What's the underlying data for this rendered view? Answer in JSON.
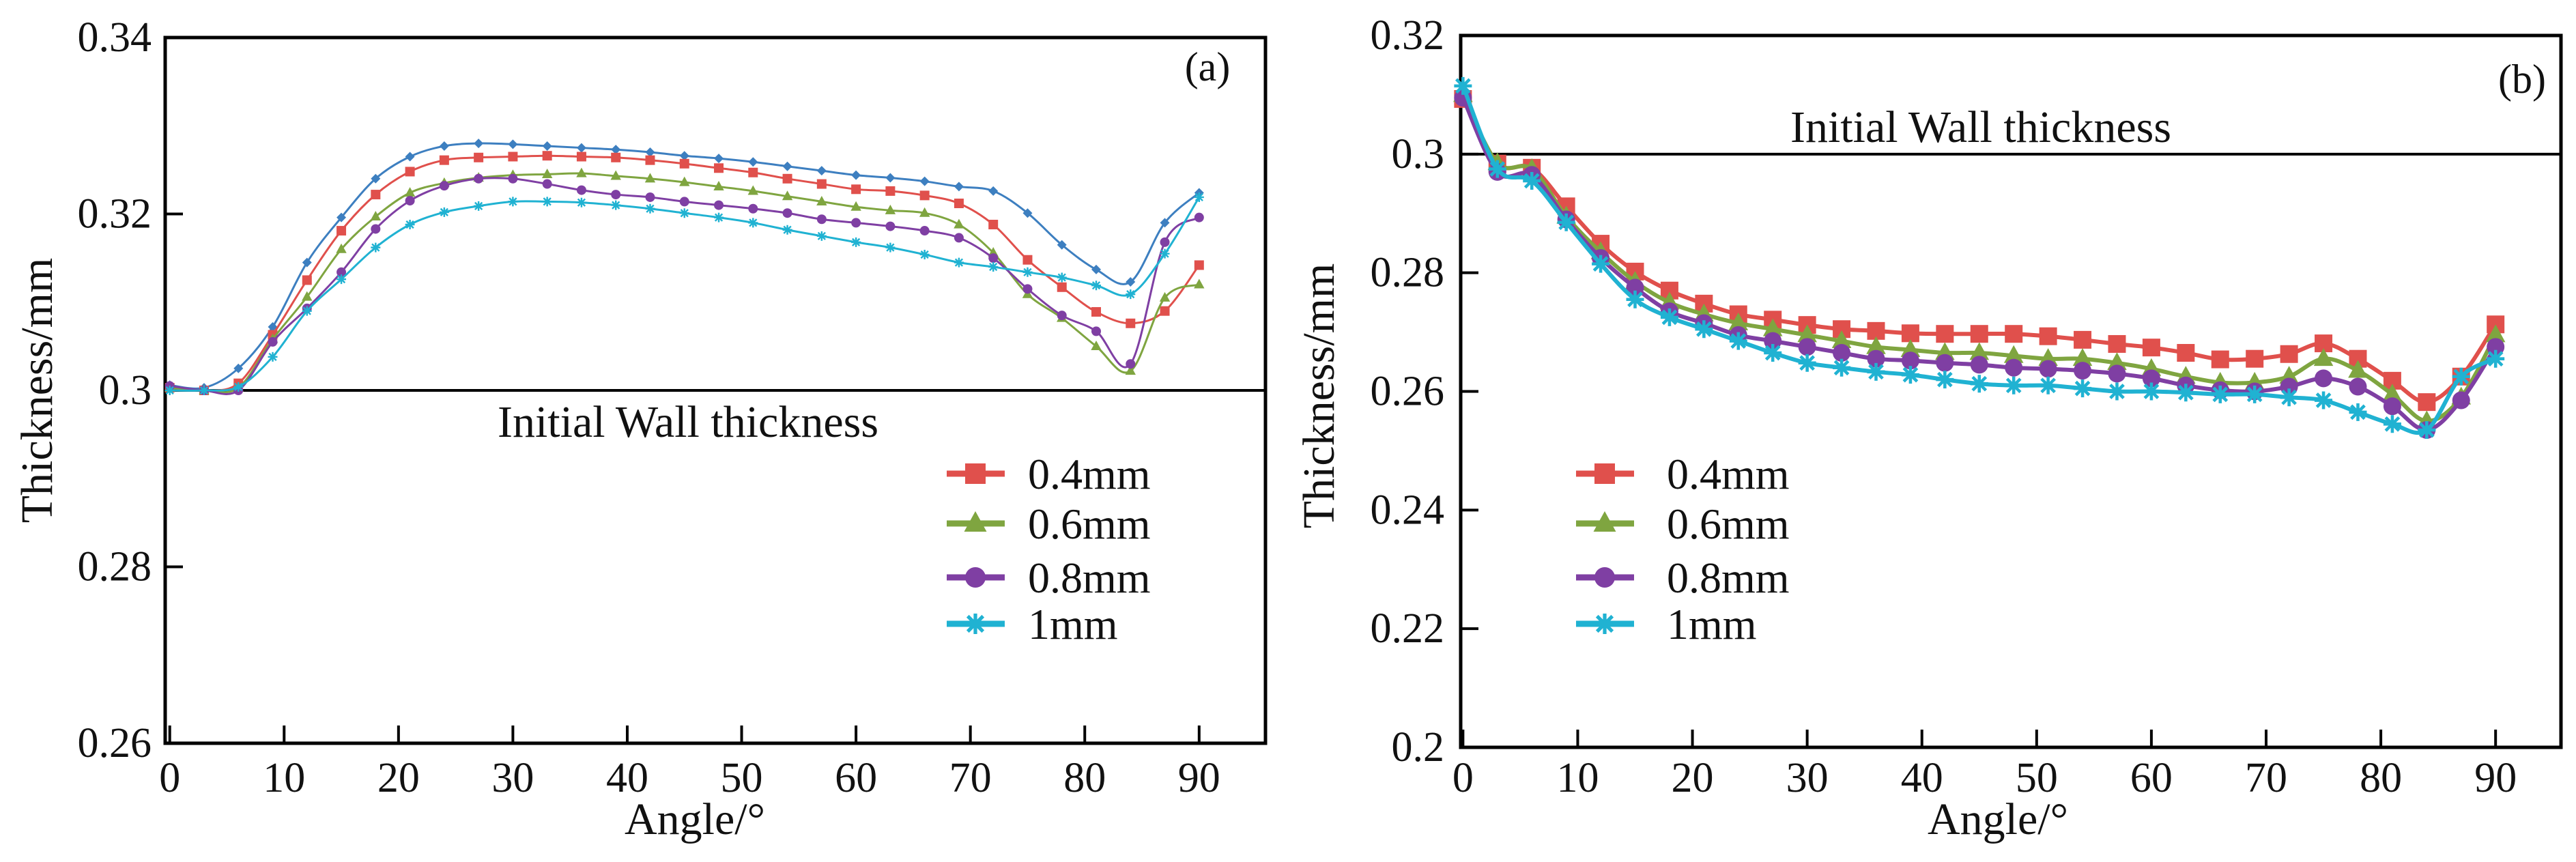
{
  "chart_data": [
    {
      "type": "line",
      "panel_label": "(a)",
      "xlabel": "Angle/°",
      "ylabel": "Thickness/mm",
      "xlim": [
        -0.4,
        95.8
      ],
      "ylim": [
        0.26,
        0.34
      ],
      "xticks": [
        0,
        10,
        20,
        30,
        40,
        50,
        60,
        70,
        80,
        90
      ],
      "xtick_labels": [
        "0",
        "10",
        "20",
        "30",
        "40",
        "50",
        "60",
        "70",
        "80",
        "90"
      ],
      "yticks": [
        0.26,
        0.28,
        0.3,
        0.32,
        0.34
      ],
      "ytick_labels": [
        "0.26",
        "0.28",
        "0.3",
        "0.32",
        "0.34"
      ],
      "grid": false,
      "legend_position": "center-right",
      "reference_line": {
        "y": 0.3,
        "label": "Initial Wall thickness"
      },
      "x": [
        0,
        3,
        6,
        9,
        12,
        15,
        18,
        21,
        24,
        27,
        30,
        33,
        36,
        39,
        42,
        45,
        48,
        51,
        54,
        57,
        60,
        63,
        66,
        69,
        72,
        75,
        78,
        81,
        84,
        87,
        90
      ],
      "series": [
        {
          "name": "",
          "color": "#3d7fc0",
          "marker": "diamond",
          "values": [
            0.3006,
            0.3003,
            0.3025,
            0.3072,
            0.3145,
            0.3196,
            0.324,
            0.3265,
            0.3277,
            0.328,
            0.3279,
            0.3277,
            0.3275,
            0.3273,
            0.327,
            0.3266,
            0.3263,
            0.3259,
            0.3254,
            0.3249,
            0.3244,
            0.3241,
            0.3237,
            0.3231,
            0.3226,
            0.3201,
            0.3165,
            0.3137,
            0.3123,
            0.319,
            0.3224
          ]
        },
        {
          "name": "0.4mm",
          "color": "#e0504c",
          "marker": "square",
          "values": [
            0.3003,
            0.3,
            0.3008,
            0.3063,
            0.3125,
            0.3181,
            0.3222,
            0.3248,
            0.3261,
            0.3264,
            0.3265,
            0.3266,
            0.3265,
            0.3264,
            0.3261,
            0.3257,
            0.3252,
            0.3247,
            0.324,
            0.3234,
            0.3228,
            0.3226,
            0.3221,
            0.3212,
            0.3188,
            0.3148,
            0.3117,
            0.3089,
            0.3076,
            0.309,
            0.3142
          ]
        },
        {
          "name": "0.6mm",
          "color": "#7fa540",
          "marker": "triangle",
          "values": [
            0.3003,
            0.3,
            0.3003,
            0.3058,
            0.3106,
            0.316,
            0.3197,
            0.3224,
            0.3235,
            0.3241,
            0.3244,
            0.3245,
            0.3246,
            0.3243,
            0.324,
            0.3236,
            0.3231,
            0.3226,
            0.322,
            0.3214,
            0.3208,
            0.3204,
            0.3201,
            0.3188,
            0.3156,
            0.3109,
            0.3082,
            0.305,
            0.3022,
            0.3105,
            0.312
          ]
        },
        {
          "name": "0.8mm",
          "color": "#7f3fa3",
          "marker": "circle",
          "values": [
            0.3005,
            0.3,
            0.3,
            0.3055,
            0.3093,
            0.3134,
            0.3183,
            0.3215,
            0.3232,
            0.324,
            0.324,
            0.3234,
            0.3227,
            0.3222,
            0.3219,
            0.3214,
            0.321,
            0.3206,
            0.3201,
            0.3194,
            0.319,
            0.3186,
            0.3181,
            0.3173,
            0.315,
            0.3115,
            0.3085,
            0.3067,
            0.303,
            0.3168,
            0.3196
          ]
        },
        {
          "name": "1mm",
          "color": "#20b2d2",
          "marker": "asterisk",
          "values": [
            0.3,
            0.3,
            0.3004,
            0.3038,
            0.309,
            0.3126,
            0.3162,
            0.3188,
            0.3202,
            0.3209,
            0.3214,
            0.3214,
            0.3213,
            0.321,
            0.3206,
            0.3201,
            0.3196,
            0.319,
            0.3182,
            0.3175,
            0.3168,
            0.3162,
            0.3154,
            0.3145,
            0.314,
            0.3134,
            0.3128,
            0.3119,
            0.3109,
            0.3155,
            0.3219
          ]
        }
      ]
    },
    {
      "type": "line",
      "panel_label": "(b)",
      "xlabel": "Angle/°",
      "ylabel": "Thickness/mm",
      "xlim": [
        -0.2,
        95.7
      ],
      "ylim": [
        0.2,
        0.32
      ],
      "xticks": [
        0,
        10,
        20,
        30,
        40,
        50,
        60,
        70,
        80,
        90
      ],
      "xtick_labels": [
        "0",
        "10",
        "20",
        "30",
        "40",
        "50",
        "60",
        "70",
        "80",
        "90"
      ],
      "yticks": [
        0.2,
        0.22,
        0.24,
        0.26,
        0.28,
        0.3,
        0.32
      ],
      "ytick_labels": [
        "0.2",
        "0.22",
        "0.24",
        "0.26",
        "0.28",
        "0.3",
        "0.32"
      ],
      "grid": false,
      "legend_position": "center-left",
      "reference_line": {
        "y": 0.3,
        "label": "Initial Wall thickness"
      },
      "x": [
        0,
        3,
        6,
        9,
        12,
        15,
        18,
        21,
        24,
        27,
        30,
        33,
        36,
        39,
        42,
        45,
        48,
        51,
        54,
        57,
        60,
        63,
        66,
        69,
        72,
        75,
        78,
        81,
        84,
        87,
        90
      ],
      "series": [
        {
          "name": "0.4mm",
          "color": "#e0504c",
          "marker": "square",
          "values": [
            0.3093,
            0.2984,
            0.2977,
            0.2912,
            0.2849,
            0.2802,
            0.277,
            0.2748,
            0.273,
            0.2721,
            0.2712,
            0.2705,
            0.2702,
            0.2698,
            0.2697,
            0.2697,
            0.2697,
            0.2693,
            0.2687,
            0.268,
            0.2674,
            0.2665,
            0.2654,
            0.2655,
            0.2663,
            0.2681,
            0.2655,
            0.2618,
            0.2582,
            0.2625,
            0.2713
          ]
        },
        {
          "name": "0.6mm",
          "color": "#7fa540",
          "marker": "triangle",
          "values": [
            0.31,
            0.2985,
            0.2975,
            0.2895,
            0.2835,
            0.2785,
            0.275,
            0.273,
            0.2715,
            0.2705,
            0.2695,
            0.2685,
            0.2675,
            0.267,
            0.2665,
            0.2665,
            0.266,
            0.2655,
            0.2655,
            0.2648,
            0.2638,
            0.2625,
            0.2615,
            0.2615,
            0.2625,
            0.2655,
            0.2635,
            0.2595,
            0.255,
            0.259,
            0.2695
          ]
        },
        {
          "name": "0.8mm",
          "color": "#7f3fa3",
          "marker": "circle",
          "values": [
            0.3095,
            0.297,
            0.2965,
            0.289,
            0.2825,
            0.2775,
            0.2735,
            0.2715,
            0.2695,
            0.2685,
            0.2675,
            0.2665,
            0.2655,
            0.2652,
            0.2648,
            0.2645,
            0.264,
            0.2638,
            0.2635,
            0.263,
            0.2622,
            0.261,
            0.2602,
            0.26,
            0.2608,
            0.2622,
            0.2608,
            0.2575,
            0.2535,
            0.2585,
            0.2675
          ]
        },
        {
          "name": "1mm",
          "color": "#20b2d2",
          "marker": "asterisk",
          "values": [
            0.3115,
            0.2975,
            0.2955,
            0.2885,
            0.2815,
            0.2755,
            0.2725,
            0.2705,
            0.2685,
            0.2665,
            0.2648,
            0.264,
            0.2633,
            0.2628,
            0.262,
            0.2613,
            0.261,
            0.261,
            0.2605,
            0.26,
            0.26,
            0.2598,
            0.2595,
            0.2595,
            0.259,
            0.2585,
            0.2565,
            0.2545,
            0.2535,
            0.2625,
            0.2655
          ]
        }
      ]
    }
  ]
}
